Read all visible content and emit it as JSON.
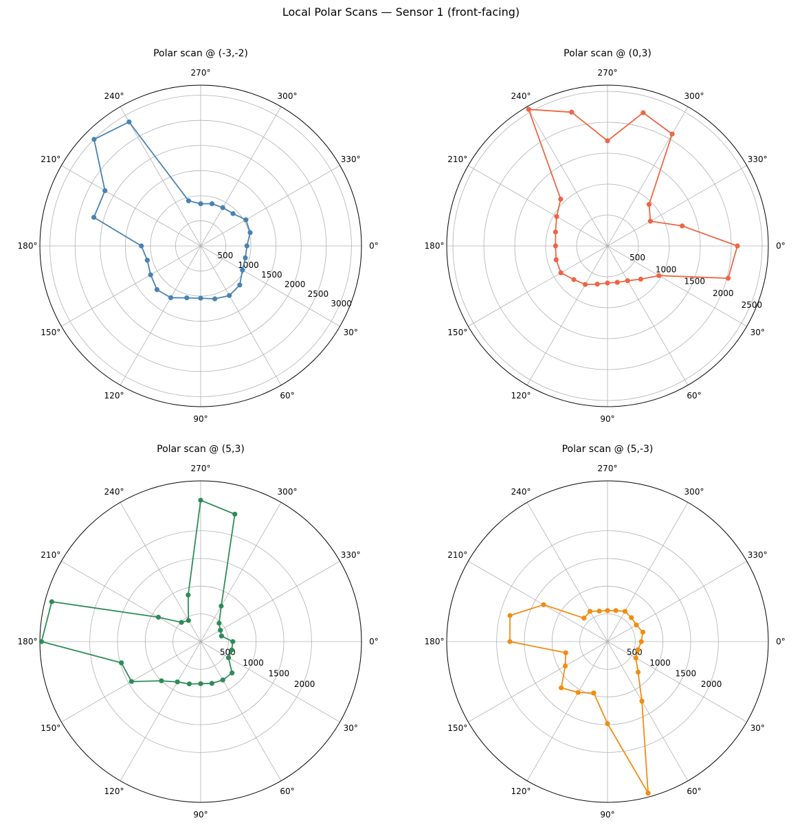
{
  "figure": {
    "title": "Local Polar Scans — Sensor 1 (front-facing)"
  },
  "chart_data": [
    {
      "type": "line",
      "projection": "polar",
      "title": "Polar scan @ (-3,-2)",
      "theta_direction": "clockwise",
      "theta_zero": "east",
      "theta_ticks": [
        "0°",
        "30°",
        "60°",
        "90°",
        "120°",
        "150°",
        "180°",
        "210°",
        "240°",
        "270°",
        "300°",
        "330°"
      ],
      "r_max": 3200,
      "r_ticks": [
        500,
        1000,
        1500,
        2000,
        2500,
        3000
      ],
      "r_tick_labels": [
        "500",
        "1000",
        "1500",
        "2000",
        "2500",
        "3000"
      ],
      "color": "#4682b4",
      "marker": "circle",
      "grid": true,
      "points": [
        {
          "theta": 0,
          "r": 920
        },
        {
          "theta": 15,
          "r": 920
        },
        {
          "theta": 30,
          "r": 960
        },
        {
          "theta": 45,
          "r": 1100
        },
        {
          "theta": 60,
          "r": 1140
        },
        {
          "theta": 75,
          "r": 1090
        },
        {
          "theta": 90,
          "r": 1040
        },
        {
          "theta": 105,
          "r": 1070
        },
        {
          "theta": 120,
          "r": 1190
        },
        {
          "theta": 135,
          "r": 1230
        },
        {
          "theta": 150,
          "r": 1150
        },
        {
          "theta": 165,
          "r": 1100
        },
        {
          "theta": 180,
          "r": 1180
        },
        {
          "theta": 195,
          "r": 2200
        },
        {
          "theta": 210,
          "r": 2200
        },
        {
          "theta": 225,
          "r": 3000
        },
        {
          "theta": 240,
          "r": 2850
        },
        {
          "theta": 255,
          "r": 930
        },
        {
          "theta": 270,
          "r": 840
        },
        {
          "theta": 285,
          "r": 870
        },
        {
          "theta": 300,
          "r": 880
        },
        {
          "theta": 315,
          "r": 910
        },
        {
          "theta": 330,
          "r": 1040
        },
        {
          "theta": 345,
          "r": 1020
        }
      ]
    },
    {
      "type": "line",
      "projection": "polar",
      "title": "Polar scan @ (0,3)",
      "theta_direction": "clockwise",
      "theta_zero": "east",
      "theta_ticks": [
        "0°",
        "30°",
        "60°",
        "90°",
        "120°",
        "150°",
        "180°",
        "210°",
        "240°",
        "270°",
        "300°",
        "330°"
      ],
      "r_max": 2600,
      "r_ticks": [
        500,
        1000,
        1500,
        2000,
        2500
      ],
      "r_tick_labels": [
        "500",
        "1000",
        "1500",
        "2000",
        "2500"
      ],
      "color": "#ee6445",
      "marker": "circle",
      "grid": true,
      "points": [
        {
          "theta": 0,
          "r": 2100
        },
        {
          "theta": 15,
          "r": 2020
        },
        {
          "theta": 30,
          "r": 960
        },
        {
          "theta": 45,
          "r": 760
        },
        {
          "theta": 60,
          "r": 650
        },
        {
          "theta": 75,
          "r": 610
        },
        {
          "theta": 90,
          "r": 600
        },
        {
          "theta": 105,
          "r": 640
        },
        {
          "theta": 120,
          "r": 720
        },
        {
          "theta": 135,
          "r": 770
        },
        {
          "theta": 150,
          "r": 870
        },
        {
          "theta": 165,
          "r": 860
        },
        {
          "theta": 180,
          "r": 840
        },
        {
          "theta": 195,
          "r": 870
        },
        {
          "theta": 210,
          "r": 950
        },
        {
          "theta": 225,
          "r": 1070
        },
        {
          "theta": 240,
          "r": 2550
        },
        {
          "theta": 255,
          "r": 2240
        },
        {
          "theta": 270,
          "r": 1700
        },
        {
          "theta": 285,
          "r": 2230
        },
        {
          "theta": 300,
          "r": 2090
        },
        {
          "theta": 315,
          "r": 950
        },
        {
          "theta": 330,
          "r": 800
        },
        {
          "theta": 345,
          "r": 1250
        }
      ]
    },
    {
      "type": "line",
      "projection": "polar",
      "title": "Polar scan @ (5,3)",
      "theta_direction": "clockwise",
      "theta_zero": "east",
      "theta_ticks": [
        "0°",
        "30°",
        "60°",
        "90°",
        "120°",
        "150°",
        "180°",
        "210°",
        "240°",
        "270°",
        "300°",
        "330°"
      ],
      "r_max": 2900,
      "r_ticks": [
        500,
        1000,
        1500,
        2000
      ],
      "r_tick_labels": [
        "500",
        "1000",
        "1500",
        "2000"
      ],
      "color": "#2e8b57",
      "marker": "circle",
      "grid": true,
      "points": [
        {
          "theta": 0,
          "r": 580
        },
        {
          "theta": 15,
          "r": 580
        },
        {
          "theta": 30,
          "r": 580
        },
        {
          "theta": 45,
          "r": 800
        },
        {
          "theta": 60,
          "r": 800
        },
        {
          "theta": 75,
          "r": 780
        },
        {
          "theta": 90,
          "r": 760
        },
        {
          "theta": 105,
          "r": 790
        },
        {
          "theta": 120,
          "r": 840
        },
        {
          "theta": 135,
          "r": 1000
        },
        {
          "theta": 150,
          "r": 1440
        },
        {
          "theta": 165,
          "r": 1480
        },
        {
          "theta": 180,
          "r": 2870
        },
        {
          "theta": 195,
          "r": 2780
        },
        {
          "theta": 210,
          "r": 880
        },
        {
          "theta": 225,
          "r": 490
        },
        {
          "theta": 240,
          "r": 440
        },
        {
          "theta": 255,
          "r": 870
        },
        {
          "theta": 270,
          "r": 2550
        },
        {
          "theta": 285,
          "r": 2380
        },
        {
          "theta": 300,
          "r": 740
        },
        {
          "theta": 315,
          "r": 470
        },
        {
          "theta": 330,
          "r": 410
        },
        {
          "theta": 345,
          "r": 390
        }
      ]
    },
    {
      "type": "line",
      "projection": "polar",
      "title": "Polar scan @ (5,-3)",
      "theta_direction": "clockwise",
      "theta_zero": "east",
      "theta_ticks": [
        "0°",
        "30°",
        "60°",
        "90°",
        "120°",
        "150°",
        "180°",
        "210°",
        "240°",
        "270°",
        "300°",
        "330°"
      ],
      "r_max": 2900,
      "r_ticks": [
        500,
        1000,
        1500,
        2000
      ],
      "r_tick_labels": [
        "500",
        "1000",
        "1500",
        "2000"
      ],
      "color": "#f28c0f",
      "marker": "circle",
      "grid": true,
      "points": [
        {
          "theta": 0,
          "r": 610
        },
        {
          "theta": 15,
          "r": 570
        },
        {
          "theta": 30,
          "r": 590
        },
        {
          "theta": 45,
          "r": 780
        },
        {
          "theta": 60,
          "r": 1240
        },
        {
          "theta": 75,
          "r": 2830
        },
        {
          "theta": 90,
          "r": 1480
        },
        {
          "theta": 105,
          "r": 960
        },
        {
          "theta": 120,
          "r": 1060
        },
        {
          "theta": 135,
          "r": 1180
        },
        {
          "theta": 150,
          "r": 880
        },
        {
          "theta": 165,
          "r": 780
        },
        {
          "theta": 180,
          "r": 1760
        },
        {
          "theta": 195,
          "r": 1820
        },
        {
          "theta": 210,
          "r": 1330
        },
        {
          "theta": 225,
          "r": 600
        },
        {
          "theta": 240,
          "r": 630
        },
        {
          "theta": 255,
          "r": 570
        },
        {
          "theta": 270,
          "r": 560
        },
        {
          "theta": 285,
          "r": 580
        },
        {
          "theta": 300,
          "r": 630
        },
        {
          "theta": 315,
          "r": 610
        },
        {
          "theta": 330,
          "r": 600
        },
        {
          "theta": 345,
          "r": 660
        }
      ]
    }
  ]
}
